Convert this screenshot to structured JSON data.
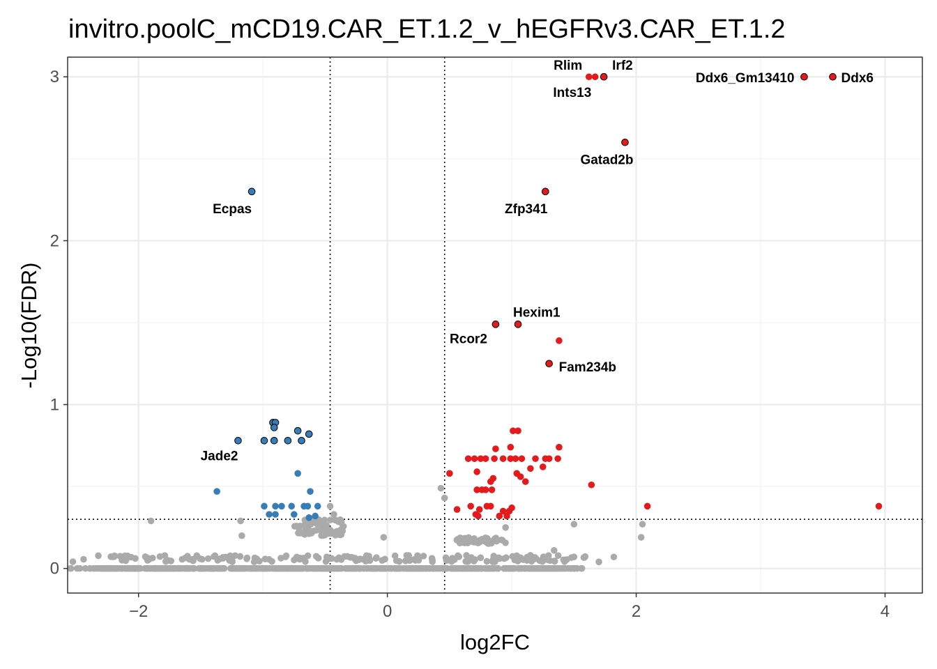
{
  "chart_data": {
    "type": "scatter",
    "title": "invitro.poolC_mCD19.CAR_ET.1.2_v_hEGFRv3.CAR_ET.1.2",
    "xlabel": "log2FC",
    "ylabel": "-Log10(FDR)",
    "xlim": [
      -2.57,
      4.3
    ],
    "ylim": [
      -0.15,
      3.12
    ],
    "x_ticks": [
      -2,
      0,
      2,
      4
    ],
    "y_ticks": [
      0,
      1,
      2,
      3
    ],
    "grid": true,
    "thresholds": {
      "log2fc": [
        -0.46,
        0.46
      ],
      "neg_log10_fdr": 0.3
    },
    "colors": {
      "up": "#e41a1c",
      "down": "#377eb8",
      "ns": "#aaaaaa"
    },
    "series": [
      {
        "group": "up",
        "points": [
          [
            3.35,
            3.0
          ],
          [
            3.58,
            3.0
          ],
          [
            1.62,
            3.0
          ],
          [
            1.67,
            3.0
          ],
          [
            1.74,
            3.0
          ],
          [
            1.91,
            2.6
          ],
          [
            1.27,
            2.3
          ],
          [
            0.87,
            1.49
          ],
          [
            1.05,
            1.49
          ],
          [
            1.38,
            1.39
          ],
          [
            1.3,
            1.25
          ],
          [
            1.01,
            0.84
          ],
          [
            1.05,
            0.84
          ],
          [
            1.38,
            0.74
          ],
          [
            0.99,
            0.74
          ],
          [
            0.87,
            0.73
          ],
          [
            0.65,
            0.67
          ],
          [
            0.7,
            0.67
          ],
          [
            0.75,
            0.67
          ],
          [
            0.79,
            0.67
          ],
          [
            0.86,
            0.67
          ],
          [
            0.93,
            0.67
          ],
          [
            0.99,
            0.67
          ],
          [
            1.03,
            0.67
          ],
          [
            1.08,
            0.67
          ],
          [
            1.19,
            0.67
          ],
          [
            1.27,
            0.67
          ],
          [
            1.3,
            0.67
          ],
          [
            1.37,
            0.67
          ],
          [
            1.25,
            0.62
          ],
          [
            1.15,
            0.61
          ],
          [
            0.72,
            0.59
          ],
          [
            1.04,
            0.58
          ],
          [
            1.07,
            0.56
          ],
          [
            0.5,
            0.58
          ],
          [
            0.83,
            0.53
          ],
          [
            0.85,
            0.55
          ],
          [
            1.11,
            0.53
          ],
          [
            0.72,
            0.48
          ],
          [
            0.76,
            0.48
          ],
          [
            0.79,
            0.48
          ],
          [
            0.84,
            0.48
          ],
          [
            1.64,
            0.51
          ],
          [
            0.56,
            0.36
          ],
          [
            0.67,
            0.38
          ],
          [
            0.74,
            0.36
          ],
          [
            0.8,
            0.38
          ],
          [
            0.83,
            0.38
          ],
          [
            0.93,
            0.35
          ],
          [
            0.98,
            0.35
          ],
          [
            1.0,
            0.37
          ],
          [
            0.73,
            0.32
          ],
          [
            0.71,
            0.33
          ],
          [
            0.9,
            0.32
          ],
          [
            0.96,
            0.32
          ],
          [
            2.09,
            0.38
          ],
          [
            3.95,
            0.38
          ]
        ]
      },
      {
        "group": "down",
        "points": [
          [
            -1.09,
            2.3
          ],
          [
            -0.92,
            0.89
          ],
          [
            -0.9,
            0.89
          ],
          [
            -0.91,
            0.86
          ],
          [
            -0.72,
            0.84
          ],
          [
            -0.63,
            0.82
          ],
          [
            -1.2,
            0.78
          ],
          [
            -0.99,
            0.78
          ],
          [
            -0.91,
            0.78
          ],
          [
            -0.8,
            0.78
          ],
          [
            -0.69,
            0.78
          ],
          [
            -0.72,
            0.58
          ],
          [
            -1.37,
            0.47
          ],
          [
            -0.62,
            0.47
          ],
          [
            -0.99,
            0.38
          ],
          [
            -0.9,
            0.38
          ],
          [
            -0.85,
            0.38
          ],
          [
            -0.77,
            0.38
          ],
          [
            -0.67,
            0.38
          ],
          [
            -0.64,
            0.38
          ],
          [
            -0.56,
            0.38
          ],
          [
            -0.95,
            0.33
          ],
          [
            -0.9,
            0.33
          ],
          [
            -0.75,
            0.33
          ],
          [
            -0.63,
            0.31
          ],
          [
            -0.58,
            0.32
          ]
        ]
      }
    ],
    "labels": [
      {
        "text": "Rlim",
        "x": 1.64,
        "y": 3.0
      },
      {
        "text": "Irf2",
        "x": 1.74,
        "y": 3.0
      },
      {
        "text": "Ints13",
        "x": 1.64,
        "y": 3.0
      },
      {
        "text": "Ddx6_Gm13410",
        "x": 3.35,
        "y": 3.0
      },
      {
        "text": "Ddx6",
        "x": 3.58,
        "y": 3.0
      },
      {
        "text": "Gatad2b",
        "x": 1.91,
        "y": 2.6
      },
      {
        "text": "Zfp341",
        "x": 1.27,
        "y": 2.3
      },
      {
        "text": "Ecpas",
        "x": -1.09,
        "y": 2.3
      },
      {
        "text": "Hexim1",
        "x": 1.05,
        "y": 1.49
      },
      {
        "text": "Rcor2",
        "x": 0.87,
        "y": 1.49
      },
      {
        "text": "Fam234b",
        "x": 1.3,
        "y": 1.25
      },
      {
        "text": "Jade2",
        "x": -1.2,
        "y": 0.78
      }
    ]
  }
}
